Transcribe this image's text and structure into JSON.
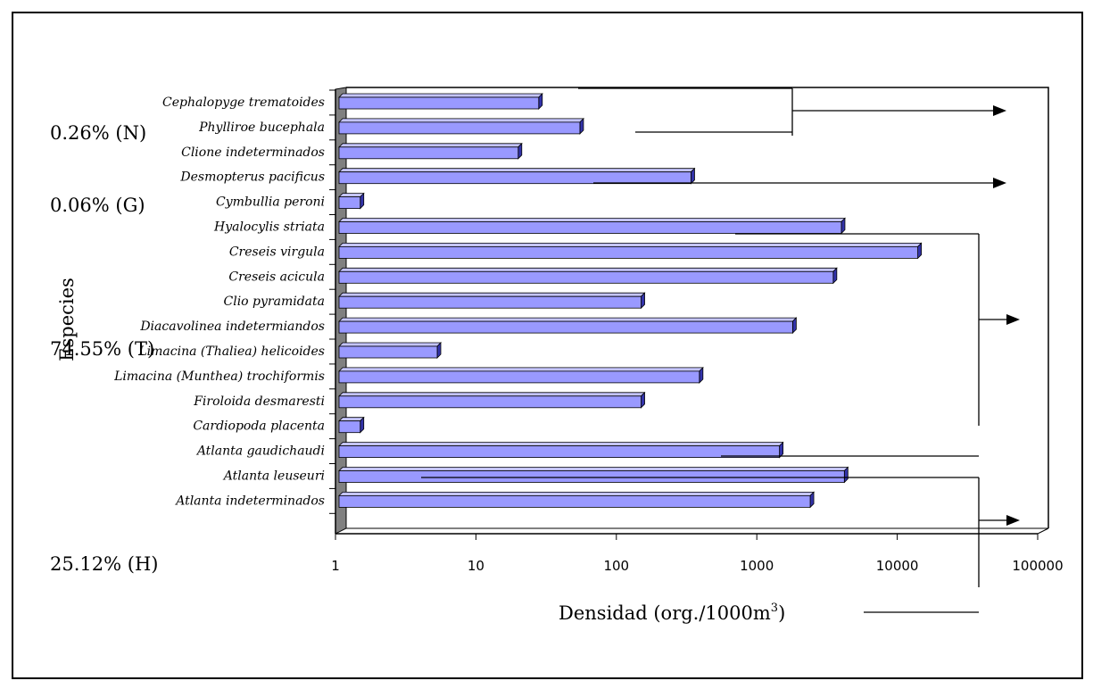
{
  "chart_data": {
    "type": "bar",
    "orientation": "horizontal",
    "x_scale": "log",
    "xlim": [
      1,
      100000
    ],
    "xticks": [
      "1",
      "10",
      "100",
      "1000",
      "10000",
      "100000"
    ],
    "xlabel": "Densidad (org./1000m",
    "xlabel_sup": "3",
    "xlabel_suffix": ")",
    "ylabel": "Especies",
    "grid": false,
    "style": "3d",
    "colors": {
      "bar_front": "#9999ff",
      "bar_top": "#c4c4ff",
      "bar_side": "#3333aa",
      "wall": "#808080"
    },
    "categories": [
      "Cephalopyge trematoides",
      "Phylliroe bucephala",
      "Clione indeterminados",
      "Desmopterus pacificus",
      "Cymbullia peroni",
      "Hyalocylis striata",
      "Creseis virgula",
      "Creseis acicula",
      "Clio pyramidata",
      "Diacavolinea indetermiandos",
      "Limacina (Thaliea) helicoides",
      "Limacina (Munthea) trochiformis",
      "Firoloida desmaresti",
      "Cardiopoda placenta",
      "Atlanta gaudichaudi",
      "Atlanta leuseuri",
      "Atlanta indeterminados"
    ],
    "values": [
      28,
      55,
      20,
      340,
      1.5,
      4000,
      14000,
      3500,
      150,
      1800,
      5.3,
      390,
      150,
      1.5,
      1450,
      4200,
      2400
    ],
    "group_labels": [
      "0.26% (N)",
      "0.06% (G)",
      "74.55% (T)",
      "25.12% (H)"
    ]
  }
}
